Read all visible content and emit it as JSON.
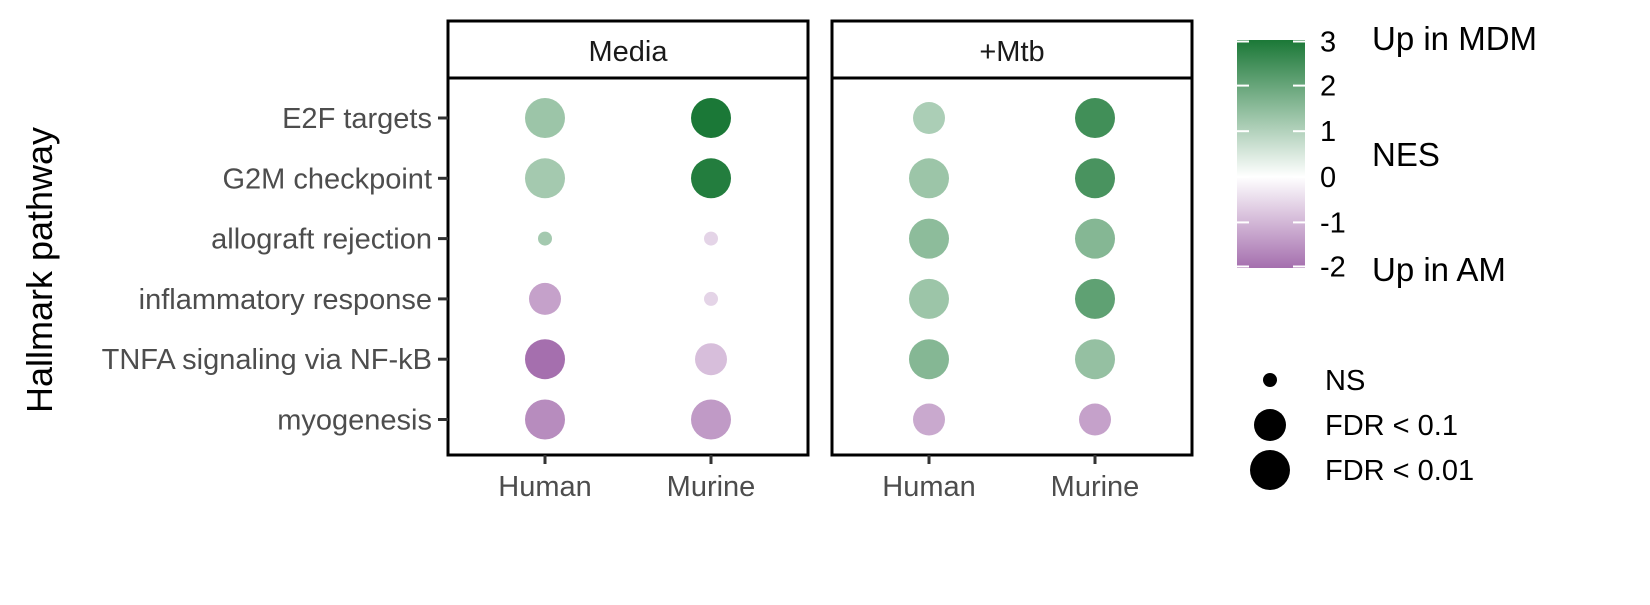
{
  "chart_data": {
    "type": "scatter",
    "ylabel": "Hallmark pathway",
    "panels": [
      "Media",
      "+Mtb"
    ],
    "x_categories": [
      "Human",
      "Murine"
    ],
    "y_categories": [
      "E2F targets",
      "G2M checkpoint",
      "allograft rejection",
      "inflammatory response",
      "TNFA signaling via NF-kB",
      "myogenesis"
    ],
    "color_scale": {
      "label": "NES",
      "top_label": "Up in MDM",
      "bottom_label": "Up in AM",
      "ticks": [
        "3",
        "2",
        "1",
        "0",
        "-1",
        "-2"
      ],
      "min": -2,
      "max": 3,
      "low_color": "#a56fae",
      "mid_color": "#ffffff",
      "high_color": "#1b7837"
    },
    "size_legend": [
      {
        "label": "NS",
        "size_level": 1
      },
      {
        "label": "FDR < 0.1",
        "size_level": 2
      },
      {
        "label": "FDR < 0.01",
        "size_level": 3
      }
    ],
    "points": [
      {
        "panel": "Media",
        "x": "Human",
        "y": "E2F targets",
        "nes": 1.3,
        "size_level": 3
      },
      {
        "panel": "Media",
        "x": "Murine",
        "y": "E2F targets",
        "nes": 3.2,
        "size_level": 3
      },
      {
        "panel": "+Mtb",
        "x": "Human",
        "y": "E2F targets",
        "nes": 1.1,
        "size_level": 2
      },
      {
        "panel": "+Mtb",
        "x": "Murine",
        "y": "E2F targets",
        "nes": 2.5,
        "size_level": 3
      },
      {
        "panel": "Media",
        "x": "Human",
        "y": "G2M checkpoint",
        "nes": 1.2,
        "size_level": 3
      },
      {
        "panel": "Media",
        "x": "Murine",
        "y": "G2M checkpoint",
        "nes": 2.9,
        "size_level": 3
      },
      {
        "panel": "+Mtb",
        "x": "Human",
        "y": "G2M checkpoint",
        "nes": 1.3,
        "size_level": 3
      },
      {
        "panel": "+Mtb",
        "x": "Murine",
        "y": "G2M checkpoint",
        "nes": 2.4,
        "size_level": 3
      },
      {
        "panel": "Media",
        "x": "Human",
        "y": "allograft rejection",
        "nes": 1.2,
        "size_level": 1
      },
      {
        "panel": "Media",
        "x": "Murine",
        "y": "allograft rejection",
        "nes": -0.6,
        "size_level": 1
      },
      {
        "panel": "+Mtb",
        "x": "Human",
        "y": "allograft rejection",
        "nes": 1.5,
        "size_level": 3
      },
      {
        "panel": "+Mtb",
        "x": "Murine",
        "y": "allograft rejection",
        "nes": 1.6,
        "size_level": 3
      },
      {
        "panel": "Media",
        "x": "Human",
        "y": "inflammatory response",
        "nes": -1.3,
        "size_level": 2
      },
      {
        "panel": "Media",
        "x": "Murine",
        "y": "inflammatory response",
        "nes": -0.6,
        "size_level": 1
      },
      {
        "panel": "+Mtb",
        "x": "Human",
        "y": "inflammatory response",
        "nes": 1.3,
        "size_level": 3
      },
      {
        "panel": "+Mtb",
        "x": "Murine",
        "y": "inflammatory response",
        "nes": 2.1,
        "size_level": 3
      },
      {
        "panel": "Media",
        "x": "Human",
        "y": "TNFA signaling via NF-kB",
        "nes": -2.0,
        "size_level": 3
      },
      {
        "panel": "Media",
        "x": "Murine",
        "y": "TNFA signaling via NF-kB",
        "nes": -0.9,
        "size_level": 2
      },
      {
        "panel": "+Mtb",
        "x": "Human",
        "y": "TNFA signaling via NF-kB",
        "nes": 1.6,
        "size_level": 3
      },
      {
        "panel": "+Mtb",
        "x": "Murine",
        "y": "TNFA signaling via NF-kB",
        "nes": 1.4,
        "size_level": 3
      },
      {
        "panel": "Media",
        "x": "Human",
        "y": "myogenesis",
        "nes": -1.6,
        "size_level": 3
      },
      {
        "panel": "Media",
        "x": "Murine",
        "y": "myogenesis",
        "nes": -1.4,
        "size_level": 3
      },
      {
        "panel": "+Mtb",
        "x": "Human",
        "y": "myogenesis",
        "nes": -1.2,
        "size_level": 2
      },
      {
        "panel": "+Mtb",
        "x": "Murine",
        "y": "myogenesis",
        "nes": -1.3,
        "size_level": 2
      }
    ]
  }
}
